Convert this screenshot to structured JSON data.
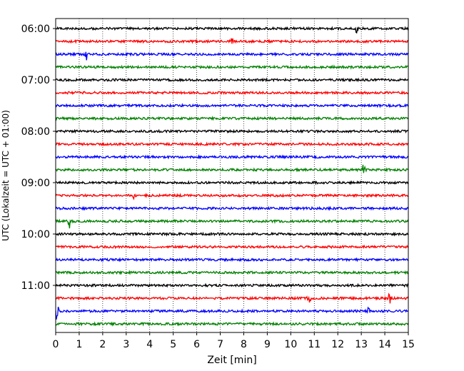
{
  "chart_data": {
    "type": "line",
    "title": "",
    "xlabel": "Zeit  [min]",
    "ylabel": "UTC (Lokalzeit = UTC + 01:00)",
    "xlim": [
      0,
      15
    ],
    "x_ticks": [
      0,
      1,
      2,
      3,
      4,
      5,
      6,
      7,
      8,
      9,
      10,
      11,
      12,
      13,
      14,
      15
    ],
    "y_tick_labels": [
      "06:00",
      "07:00",
      "08:00",
      "09:00",
      "10:00",
      "11:00"
    ],
    "y_tick_trace_index": [
      0,
      4,
      8,
      12,
      16,
      20
    ],
    "vertical_grid": "dotted",
    "trace_colors": [
      "#000000",
      "#ff0000",
      "#0000ff",
      "#008000"
    ],
    "traces": [
      {
        "start": "06:00",
        "color": "#000000",
        "events": [
          {
            "t": 12.8,
            "amp": 5
          }
        ]
      },
      {
        "start": "06:15",
        "color": "#ff0000",
        "events": [
          {
            "t": 7.5,
            "amp": 4
          }
        ]
      },
      {
        "start": "06:30",
        "color": "#0000ff",
        "events": [
          {
            "t": 1.3,
            "amp": 8
          }
        ]
      },
      {
        "start": "06:45",
        "color": "#008000",
        "events": []
      },
      {
        "start": "07:00",
        "color": "#000000",
        "events": []
      },
      {
        "start": "07:15",
        "color": "#ff0000",
        "events": []
      },
      {
        "start": "07:30",
        "color": "#0000ff",
        "events": []
      },
      {
        "start": "07:45",
        "color": "#008000",
        "events": []
      },
      {
        "start": "08:00",
        "color": "#000000",
        "events": []
      },
      {
        "start": "08:15",
        "color": "#ff0000",
        "events": []
      },
      {
        "start": "08:30",
        "color": "#0000ff",
        "events": []
      },
      {
        "start": "08:45",
        "color": "#008000",
        "events": [
          {
            "t": 13.1,
            "amp": 7
          }
        ]
      },
      {
        "start": "09:00",
        "color": "#000000",
        "events": []
      },
      {
        "start": "09:15",
        "color": "#ff0000",
        "events": [
          {
            "t": 3.3,
            "amp": 4
          }
        ]
      },
      {
        "start": "09:30",
        "color": "#0000ff",
        "events": []
      },
      {
        "start": "09:45",
        "color": "#008000",
        "events": [
          {
            "t": 0.6,
            "amp": 10
          }
        ]
      },
      {
        "start": "10:00",
        "color": "#000000",
        "events": []
      },
      {
        "start": "10:15",
        "color": "#ff0000",
        "events": []
      },
      {
        "start": "10:30",
        "color": "#0000ff",
        "events": []
      },
      {
        "start": "10:45",
        "color": "#008000",
        "events": []
      },
      {
        "start": "11:00",
        "color": "#000000",
        "events": []
      },
      {
        "start": "11:15",
        "color": "#ff0000",
        "events": [
          {
            "t": 10.8,
            "amp": 18
          },
          {
            "t": 14.2,
            "amp": 7
          }
        ]
      },
      {
        "start": "11:30",
        "color": "#0000ff",
        "events": [
          {
            "t": 0.05,
            "amp": 14
          },
          {
            "t": 13.3,
            "amp": 4
          }
        ]
      },
      {
        "start": "11:45",
        "color": "#008000",
        "events": []
      }
    ]
  }
}
